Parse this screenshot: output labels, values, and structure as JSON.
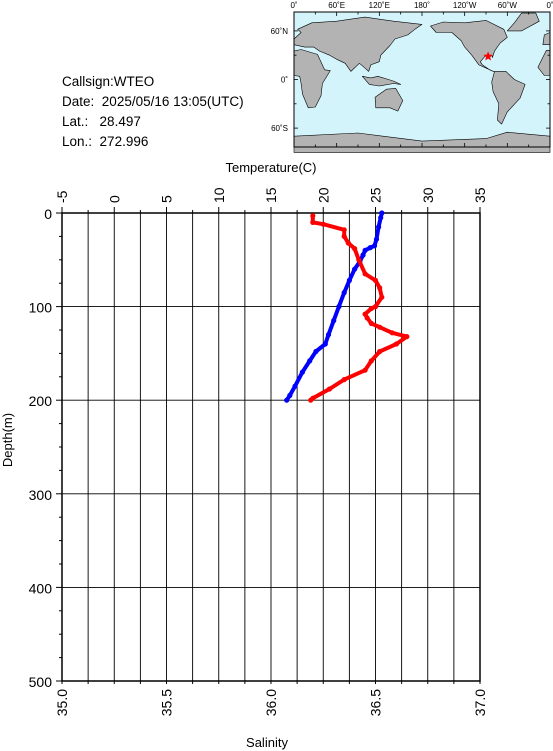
{
  "station": {
    "callsign_label": "Callsign:",
    "callsign": "WTEO",
    "date_label": "Date:",
    "date": "2025/05/16 13:05(UTC)",
    "lat_label": "Lat.:",
    "lat": "28.497",
    "lon_label": "Lon.:",
    "lon": "272.996"
  },
  "map": {
    "lon_labels": [
      "0˚",
      "60˚E",
      "120˚E",
      "180˚",
      "120˚W",
      "60˚W",
      "0˚"
    ],
    "lat_labels": [
      "60˚N",
      "0˚",
      "60˚S"
    ],
    "ocean_color": "#d4f4fc",
    "land_color": "#b3b3b3",
    "marker_color": "#ff0000",
    "marker_lon": 272.996,
    "marker_lat": 28.497
  },
  "chart_data": {
    "type": "line",
    "title": "",
    "xlabel_top": "Temperature(C)",
    "xlabel_bottom": "Salinity",
    "ylabel": "Depth(m)",
    "temperature_axis": {
      "range": [
        -5,
        35
      ],
      "ticks": [
        -5,
        0,
        5,
        10,
        15,
        20,
        25,
        30,
        35
      ]
    },
    "salinity_axis": {
      "range": [
        35.0,
        37.0
      ],
      "ticks": [
        "35.0",
        "35.5",
        "36.0",
        "36.5",
        "37.0"
      ]
    },
    "depth_axis": {
      "range": [
        0,
        500
      ],
      "ticks": [
        0,
        100,
        200,
        300,
        400,
        500
      ],
      "inverted": true
    },
    "grid": true,
    "series": [
      {
        "name": "",
        "variable": "temperature",
        "color": "#0000ff",
        "points": [
          [
            25.6,
            0
          ],
          [
            25.5,
            5
          ],
          [
            25.3,
            15
          ],
          [
            25.1,
            28
          ],
          [
            24.9,
            35
          ],
          [
            24.5,
            37
          ],
          [
            24.0,
            40
          ],
          [
            23.8,
            45
          ],
          [
            23.5,
            52
          ],
          [
            23.0,
            60
          ],
          [
            22.5,
            72
          ],
          [
            22.0,
            85
          ],
          [
            21.5,
            100
          ],
          [
            21.0,
            115
          ],
          [
            20.5,
            130
          ],
          [
            20.2,
            140
          ],
          [
            19.3,
            148
          ],
          [
            18.7,
            158
          ],
          [
            18.0,
            170
          ],
          [
            17.3,
            185
          ],
          [
            16.8,
            195
          ],
          [
            16.5,
            200
          ]
        ]
      },
      {
        "name": "",
        "variable": "salinity",
        "color": "#ff0000",
        "points": [
          [
            36.2,
            3
          ],
          [
            36.2,
            10
          ],
          [
            36.25,
            12
          ],
          [
            36.35,
            18
          ],
          [
            36.35,
            25
          ],
          [
            36.37,
            32
          ],
          [
            36.4,
            38
          ],
          [
            36.42,
            50
          ],
          [
            36.45,
            65
          ],
          [
            36.5,
            72
          ],
          [
            36.52,
            80
          ],
          [
            36.53,
            90
          ],
          [
            36.5,
            100
          ],
          [
            36.48,
            102
          ],
          [
            36.45,
            108
          ],
          [
            36.46,
            112
          ],
          [
            36.48,
            118
          ],
          [
            36.52,
            122
          ],
          [
            36.58,
            128
          ],
          [
            36.65,
            132
          ],
          [
            36.6,
            140
          ],
          [
            36.52,
            148
          ],
          [
            36.48,
            158
          ],
          [
            36.45,
            168
          ],
          [
            36.35,
            178
          ],
          [
            36.28,
            188
          ],
          [
            36.2,
            198
          ],
          [
            36.19,
            200
          ]
        ]
      }
    ]
  }
}
